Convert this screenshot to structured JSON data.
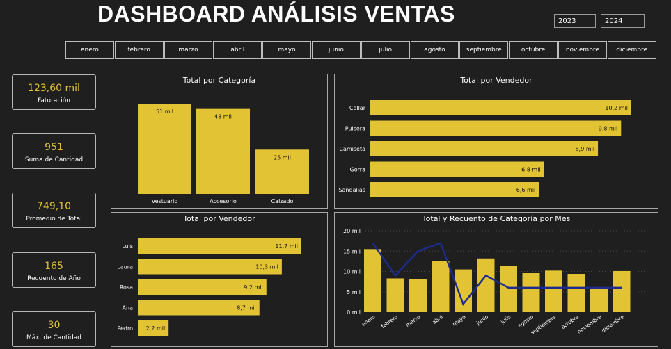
{
  "header": {
    "title": "DASHBOARD ANÁLISIS VENTAS",
    "years": [
      "2023",
      "2024"
    ]
  },
  "months": [
    "enero",
    "febrero",
    "marzo",
    "abril",
    "mayo",
    "junio",
    "julio",
    "agosto",
    "septiembre",
    "octubre",
    "noviembre",
    "diciembre"
  ],
  "kpis": [
    {
      "value": "123,60 mil",
      "label": "Faturación"
    },
    {
      "value": "951",
      "label": "Suma de Cantidad"
    },
    {
      "value": "749,10",
      "label": "Promedio de Total"
    },
    {
      "value": "165",
      "label": "Recuento de Año"
    },
    {
      "value": "30",
      "label": "Máx. de Cantidad"
    }
  ],
  "colors": {
    "bar": "#e2c334",
    "line": "#1d2b8f",
    "background": "#1f1f1f"
  },
  "chart_data": [
    {
      "type": "bar",
      "title": "Total por Categoría",
      "categories": [
        "Vestuario",
        "Accesorio",
        "Calzado"
      ],
      "values": [
        51,
        48,
        25
      ],
      "labels": [
        "51 mil",
        "48 mil",
        "25 mil"
      ]
    },
    {
      "type": "bar",
      "orientation": "horizontal",
      "title": "Total por Vendedor",
      "categories": [
        "Collar",
        "Pulsera",
        "Camiseta",
        "Gorra",
        "Sandalias"
      ],
      "values": [
        10.2,
        9.8,
        8.9,
        6.8,
        6.6
      ],
      "labels": [
        "10,2 mil",
        "9,8 mil",
        "8,9 mil",
        "6,8 mil",
        "6,6 mil"
      ]
    },
    {
      "type": "bar",
      "orientation": "horizontal",
      "title": "Total por Vendedor",
      "categories": [
        "Luis",
        "Laura",
        "Rosa",
        "Ana",
        "Pedro"
      ],
      "values": [
        11.7,
        10.3,
        9.2,
        8.7,
        2.2
      ],
      "labels": [
        "11,7 mil",
        "10,3 mil",
        "9,2 mil",
        "8,7 mil",
        "2,2 mil"
      ]
    },
    {
      "type": "bar",
      "title": "Total y Recuento de Categoría por Mes",
      "categories": [
        "enero",
        "febrero",
        "marzo",
        "abril",
        "mayo",
        "junio",
        "julio",
        "agosto",
        "septiembre",
        "octubre",
        "noviembre",
        "diciembre"
      ],
      "ylim": [
        0,
        20
      ],
      "yticks": [
        "0 mil",
        "5 mil",
        "10 mil",
        "15 mil",
        "20 mil"
      ],
      "series": [
        {
          "type": "bar",
          "values": [
            15.5,
            8.3,
            8.1,
            12.5,
            10.5,
            13.2,
            11.3,
            9.6,
            10.2,
            9.4,
            6.1,
            10.1
          ]
        },
        {
          "type": "line",
          "values": [
            17,
            9,
            15,
            17,
            2,
            9,
            6,
            6,
            6,
            6,
            6,
            6
          ]
        }
      ]
    }
  ]
}
